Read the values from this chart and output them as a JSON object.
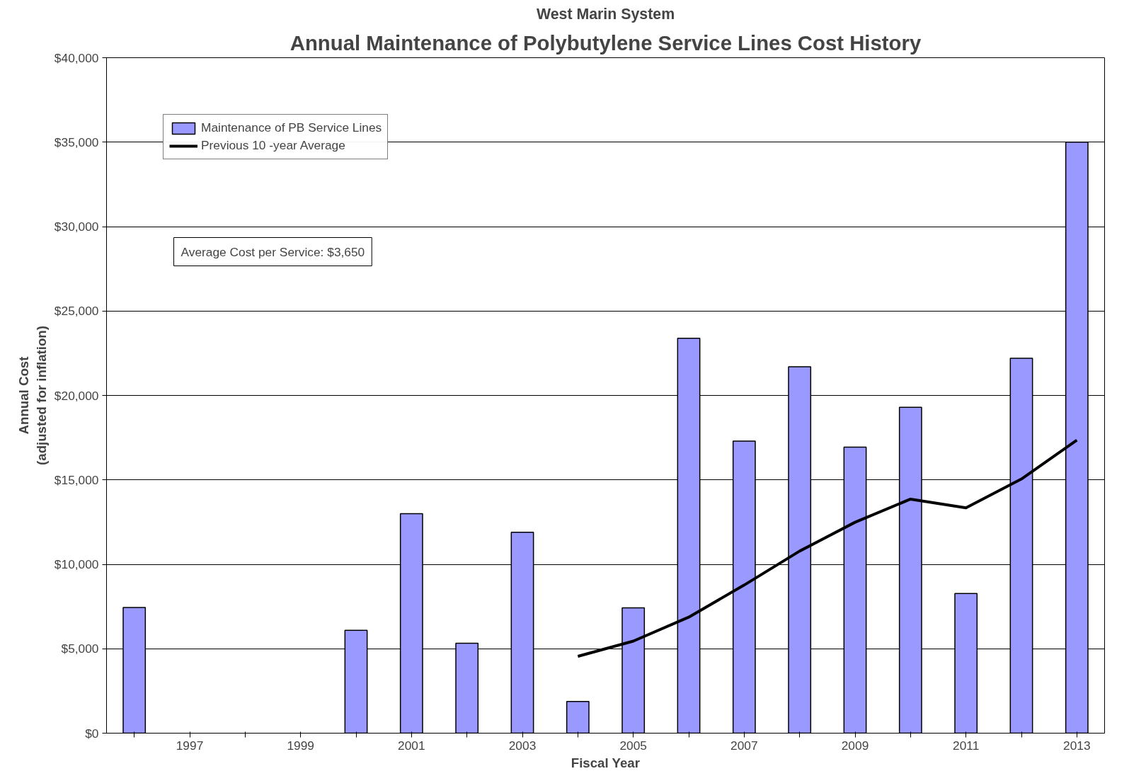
{
  "chart_data": {
    "type": "bar",
    "title": "Annual Maintenance of Polybutylene Service Lines Cost History",
    "subtitle": "West Marin System",
    "xlabel": "Fiscal Year",
    "ylabel": "Annual Cost\n(adjusted for inflation)",
    "categories": [
      null,
      "1997",
      null,
      "1999",
      null,
      "2001",
      null,
      "2003",
      null,
      "2005",
      null,
      "2007",
      null,
      "2009",
      null,
      "2011",
      null,
      "2013"
    ],
    "series": [
      {
        "name": "Maintenance of PB Service Lines",
        "color": "#9999ff",
        "values": [
          7440,
          null,
          null,
          null,
          6090,
          13000,
          5320,
          11900,
          1880,
          7420,
          23390,
          17300,
          21700,
          16940,
          19300,
          8270,
          22200,
          35000
        ]
      },
      {
        "name": "Previous 10 -year Average",
        "type": "line",
        "color": "#000000",
        "values": [
          null,
          null,
          null,
          null,
          null,
          null,
          null,
          null,
          4550,
          5450,
          6870,
          8770,
          10780,
          12490,
          13860,
          13340,
          15050,
          17350
        ]
      }
    ],
    "ylim": [
      0,
      40000
    ],
    "yticks": [
      {
        "value": 0,
        "label": "$0"
      },
      {
        "value": 5000,
        "label": "$5,000"
      },
      {
        "value": 10000,
        "label": "$10,000"
      },
      {
        "value": 15000,
        "label": "$15,000"
      },
      {
        "value": 20000,
        "label": "$20,000"
      },
      {
        "value": 25000,
        "label": "$25,000"
      },
      {
        "value": 30000,
        "label": "$30,000"
      },
      {
        "value": 35000,
        "label": "$35,000"
      },
      {
        "value": 40000,
        "label": "$40,000"
      }
    ],
    "grid": "y",
    "legend": "top left",
    "annotations": [
      "Average Cost per Service: $3,650"
    ]
  }
}
